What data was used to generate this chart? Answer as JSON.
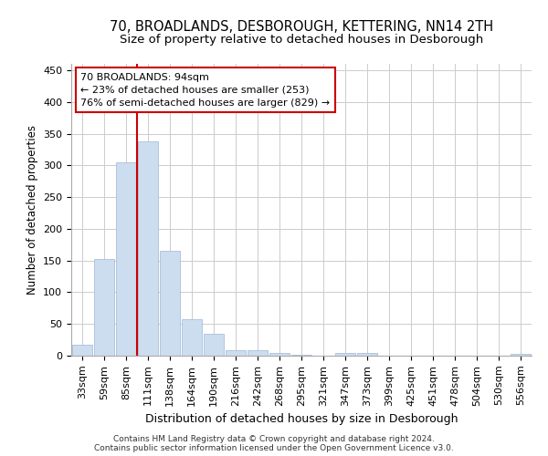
{
  "title": "70, BROADLANDS, DESBOROUGH, KETTERING, NN14 2TH",
  "subtitle": "Size of property relative to detached houses in Desborough",
  "xlabel": "Distribution of detached houses by size in Desborough",
  "ylabel": "Number of detached properties",
  "categories": [
    "33sqm",
    "59sqm",
    "85sqm",
    "111sqm",
    "138sqm",
    "164sqm",
    "190sqm",
    "216sqm",
    "242sqm",
    "268sqm",
    "295sqm",
    "321sqm",
    "347sqm",
    "373sqm",
    "399sqm",
    "425sqm",
    "451sqm",
    "478sqm",
    "504sqm",
    "530sqm",
    "556sqm"
  ],
  "values": [
    17,
    153,
    305,
    338,
    165,
    57,
    35,
    9,
    8,
    4,
    1,
    0,
    5,
    5,
    0,
    0,
    0,
    0,
    0,
    0,
    3
  ],
  "bar_color": "#ccddf0",
  "bar_edge_color": "#aabfd8",
  "redline_x": 2.5,
  "annotation_text1": "70 BROADLANDS: 94sqm",
  "annotation_text2": "← 23% of detached houses are smaller (253)",
  "annotation_text3": "76% of semi-detached houses are larger (829) →",
  "annotation_box_color": "#ffffff",
  "annotation_box_edgecolor": "#cc0000",
  "redline_color": "#cc0000",
  "grid_color": "#cccccc",
  "background_color": "#ffffff",
  "footnote1": "Contains HM Land Registry data © Crown copyright and database right 2024.",
  "footnote2": "Contains public sector information licensed under the Open Government Licence v3.0.",
  "ylim": [
    0,
    460
  ],
  "title_fontsize": 10.5,
  "subtitle_fontsize": 9.5,
  "xlabel_fontsize": 9,
  "ylabel_fontsize": 8.5,
  "tick_fontsize": 8,
  "annotation_fontsize": 8,
  "footnote_fontsize": 6.5
}
